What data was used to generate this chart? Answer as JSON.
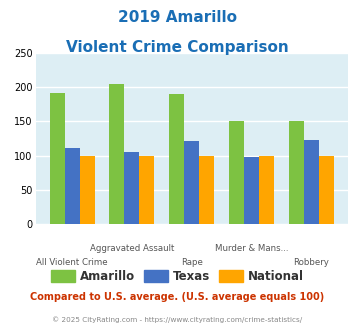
{
  "title_line1": "2019 Amarillo",
  "title_line2": "Violent Crime Comparison",
  "x_labels_top": [
    "",
    "Aggravated Assault",
    "",
    "Murder & Mans...",
    ""
  ],
  "x_labels_bottom": [
    "All Violent Crime",
    "",
    "Rape",
    "",
    "Robbery"
  ],
  "amarillo": [
    191,
    205,
    190,
    151,
    151
  ],
  "texas": [
    111,
    106,
    121,
    98,
    123
  ],
  "national": [
    100,
    100,
    100,
    100,
    100
  ],
  "amarillo_color": "#7dc242",
  "texas_color": "#4472c4",
  "national_color": "#ffa500",
  "bg_color": "#ddeef4",
  "title_color": "#1a6eb5",
  "ylim": [
    0,
    250
  ],
  "yticks": [
    0,
    50,
    100,
    150,
    200,
    250
  ],
  "footnote": "Compared to U.S. average. (U.S. average equals 100)",
  "copyright": "© 2025 CityRating.com - https://www.cityrating.com/crime-statistics/",
  "footnote_color": "#cc3300",
  "copyright_color": "#888888",
  "legend_labels": [
    "Amarillo",
    "Texas",
    "National"
  ],
  "bar_width": 0.25
}
